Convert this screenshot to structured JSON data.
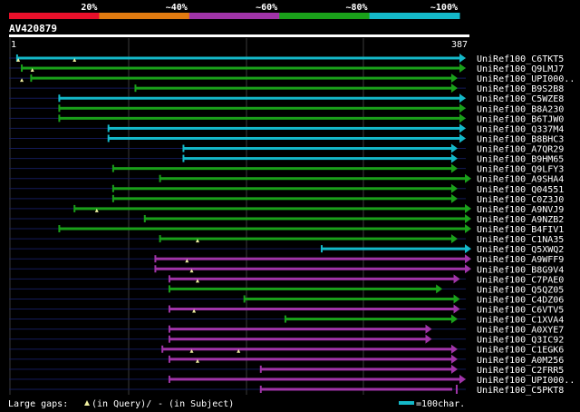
{
  "legend": {
    "labels": [
      "20%",
      "~40%",
      "~60%",
      "~80%",
      "~100%"
    ],
    "colors": [
      "#e8102a",
      "#e07a10",
      "#a034a8",
      "#1aa01a",
      "#14b8c8"
    ]
  },
  "query": {
    "id": "AV420879",
    "start_label": "1",
    "end_label": "387",
    "length": 387
  },
  "footer": {
    "gaps_label": "Large gaps:",
    "query_gap_label": "(in Query)/",
    "subject_gap_label": "- (in Subject)",
    "scale_label": "=100char."
  },
  "hits": [
    {
      "name": "UniRef100_C6TKT5",
      "color": "#14b8c8",
      "start": 4,
      "end": 387,
      "gaps": [
        5,
        53
      ],
      "head": "tri"
    },
    {
      "name": "UniRef100_Q9LMJ7",
      "color": "#1aa01a",
      "start": 8,
      "end": 387,
      "gaps": [
        17
      ],
      "head": "tri"
    },
    {
      "name": "UniRef100_UPI000..",
      "color": "#1aa01a",
      "start": 16,
      "end": 380,
      "gaps": [
        8
      ],
      "head": "tri"
    },
    {
      "name": "UniRef100_B9S2B8",
      "color": "#1aa01a",
      "start": 105,
      "end": 380,
      "gaps": [],
      "head": "tri"
    },
    {
      "name": "UniRef100_C5WZE8",
      "color": "#14b8c8",
      "start": 40,
      "end": 387,
      "gaps": [],
      "head": "tri"
    },
    {
      "name": "UniRef100_B8A230",
      "color": "#1aa01a",
      "start": 40,
      "end": 387,
      "gaps": [],
      "head": "tri"
    },
    {
      "name": "UniRef100_B6TJW0",
      "color": "#1aa01a",
      "start": 40,
      "end": 387,
      "gaps": [],
      "head": "tri"
    },
    {
      "name": "UniRef100_Q337M4",
      "color": "#14b8c8",
      "start": 82,
      "end": 387,
      "gaps": [],
      "head": "tri"
    },
    {
      "name": "UniRef100_B8BHC3",
      "color": "#14b8c8",
      "start": 82,
      "end": 387,
      "gaps": [],
      "head": "tri"
    },
    {
      "name": "UniRef100_A7QR29",
      "color": "#14b8c8",
      "start": 146,
      "end": 380,
      "gaps": [],
      "head": "tri"
    },
    {
      "name": "UniRef100_B9HM65",
      "color": "#14b8c8",
      "start": 146,
      "end": 380,
      "gaps": [],
      "head": "tri"
    },
    {
      "name": "UniRef100_Q9LFY3",
      "color": "#1aa01a",
      "start": 86,
      "end": 380,
      "gaps": [],
      "head": "tri"
    },
    {
      "name": "UniRef100_A9SHA4",
      "color": "#1aa01a",
      "start": 126,
      "end": 392,
      "gaps": [],
      "head": "tri"
    },
    {
      "name": "UniRef100_Q04551",
      "color": "#1aa01a",
      "start": 86,
      "end": 380,
      "gaps": [],
      "head": "tri"
    },
    {
      "name": "UniRef100_C0Z3J0",
      "color": "#1aa01a",
      "start": 86,
      "end": 380,
      "gaps": [],
      "head": "tri"
    },
    {
      "name": "UniRef100_A9NVJ9",
      "color": "#1aa01a",
      "start": 53,
      "end": 392,
      "gaps": [
        72
      ],
      "head": "tri"
    },
    {
      "name": "UniRef100_A9NZB2",
      "color": "#1aa01a",
      "start": 113,
      "end": 392,
      "gaps": [],
      "head": "tri"
    },
    {
      "name": "UniRef100_B4FIV1",
      "color": "#1aa01a",
      "start": 40,
      "end": 392,
      "gaps": [],
      "head": "tri"
    },
    {
      "name": "UniRef100_C1NA35",
      "color": "#1aa01a",
      "start": 126,
      "end": 380,
      "gaps": [
        158
      ],
      "head": "tri"
    },
    {
      "name": "UniRef100_Q5XWQ2",
      "color": "#14b8c8",
      "start": 264,
      "end": 392,
      "gaps": [],
      "head": "tri"
    },
    {
      "name": "UniRef100_A9WFF9",
      "color": "#a034a8",
      "start": 122,
      "end": 392,
      "gaps": [
        149
      ],
      "head": "tri"
    },
    {
      "name": "UniRef100_B8G9V4",
      "color": "#a034a8",
      "start": 122,
      "end": 392,
      "gaps": [
        153
      ],
      "head": "tri"
    },
    {
      "name": "UniRef100_C7PAE0",
      "color": "#a034a8",
      "start": 134,
      "end": 382,
      "gaps": [
        158
      ],
      "head": "tri"
    },
    {
      "name": "UniRef100_Q5QZ05",
      "color": "#1aa01a",
      "start": 134,
      "end": 367,
      "gaps": [],
      "head": "tri"
    },
    {
      "name": "UniRef100_C4DZ06",
      "color": "#1aa01a",
      "start": 198,
      "end": 382,
      "gaps": [],
      "head": "tri"
    },
    {
      "name": "UniRef100_C6VTV5",
      "color": "#a034a8",
      "start": 134,
      "end": 382,
      "gaps": [
        155
      ],
      "head": "tri"
    },
    {
      "name": "UniRef100_C1XVA4",
      "color": "#1aa01a",
      "start": 233,
      "end": 380,
      "gaps": [],
      "head": "tri"
    },
    {
      "name": "UniRef100_A0XYE7",
      "color": "#a034a8",
      "start": 134,
      "end": 358,
      "gaps": [],
      "head": "tri"
    },
    {
      "name": "UniRef100_Q3IC92",
      "color": "#a034a8",
      "start": 134,
      "end": 358,
      "gaps": [],
      "head": "tri"
    },
    {
      "name": "UniRef100_C1EGK6",
      "color": "#a034a8",
      "start": 128,
      "end": 380,
      "gaps": [
        153,
        193
      ],
      "head": "tri"
    },
    {
      "name": "UniRef100_A0M256",
      "color": "#a034a8",
      "start": 134,
      "end": 380,
      "gaps": [
        158
      ],
      "head": "tri"
    },
    {
      "name": "UniRef100_C2FRR5",
      "color": "#a034a8",
      "start": 212,
      "end": 380,
      "gaps": [],
      "head": "tri"
    },
    {
      "name": "UniRef100_UPI000..",
      "color": "#a034a8",
      "start": 134,
      "end": 387,
      "gaps": [],
      "head": "tri"
    },
    {
      "name": "UniRef100_C5PKT8",
      "color": "#a034a8",
      "start": 212,
      "end": 380,
      "gaps": [],
      "head": "bar"
    }
  ]
}
